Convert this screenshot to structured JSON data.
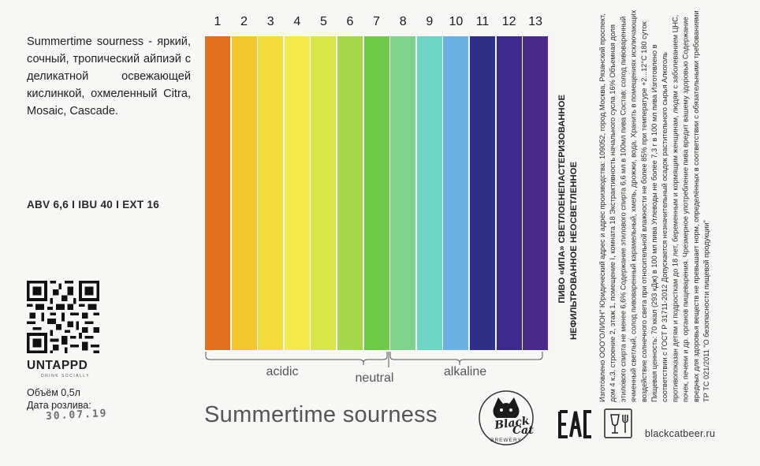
{
  "description": "Summertime sourness - яркий, сочный, тропический айпиэй с деликатной освежающей кислинкой, охмеленный Citra, Mosaic, Cascade.",
  "stats": "ABV 6,6 I IBU 40 I EXT 16",
  "untappd": {
    "name": "UNTAPPD",
    "tagline": "DRINK SOCIALLY"
  },
  "volume": "Объём 0,5л",
  "bottled_label": "Дата розлива:",
  "bottled_date": "30.07.19",
  "ph_scale": {
    "numbers": [
      "1",
      "2",
      "3",
      "4",
      "5",
      "6",
      "7",
      "8",
      "9",
      "10",
      "11",
      "12",
      "13"
    ],
    "colors": [
      "#e2701f",
      "#f2c62d",
      "#f4dc3c",
      "#f2e94a",
      "#d8e74a",
      "#a4d84a",
      "#6fca4a",
      "#7fd38a",
      "#6fd3c6",
      "#6bb2e2",
      "#2e2f86",
      "#3b2a8c",
      "#4b2a8e"
    ],
    "labels": {
      "acidic": "acidic",
      "neutral": "neutral",
      "alkaline": "alkaline"
    }
  },
  "title": "Summertime sourness",
  "brand": {
    "logo_text_1": "Black",
    "logo_text_2": "Cat",
    "logo_text_3": "BREWERY"
  },
  "product_name_line1": "ПИВО «ИПА» СВЕТЛОЕНЕПАСТЕРИЗОВАННОЕ",
  "product_name_line2": "НЕФИЛЬТРОВАННОЕ НЕОСВЕТЛЕННОЕ",
  "legal_text": "Изготовлено ООО\"ОЛИОН\" Юридический адрес и адрес производства: 109052, город Москва, Рязанский проспект, дом 4 к.3, строение 2, этаж 1, помещение I, комната 18 Экстрактивность начального сусла 16% Объемная доля этилового спирта не менее 6,6% Содержание этилового спирта 6,6 мл в 100мл пива Состав: солод пивоваренный ячменный светлый, солод пивоваренный карамельный, хмель, дрожжи, вода. Хранить в помещениях исключающих воздействие солнечного света при относительной влажности не более 85% при температуре +2...12°С 180 суток Пищевая ценность: 70 ккал (293 кДж) в 100 мл пива Углеводы не более 7,3 г в 100 мл пива Изготовлено в соответствии с ГОСТ Р 31711-2012 Допускается незначительный осадок растительного сырья Алкоголь противопоказан детям и подросткам до 18 лет, беременным и кормящим женщинам, людям с заболеванием ЦНС, почек, печени и др. органов пищеварения. Чрезмерное употребление пива вредит вашему здоровью Содержание вредных для здоровья веществ не превышает норм, определённых в соответствии с обязательными требованиями ТР ТС 021/2011 \"О безопасности пищевой продукции\"",
  "website": "blackcatbeer.ru",
  "icons": {
    "qr": "qr-code-icon",
    "eac": "eac-mark-icon",
    "glass": "glass-fork-icon"
  }
}
